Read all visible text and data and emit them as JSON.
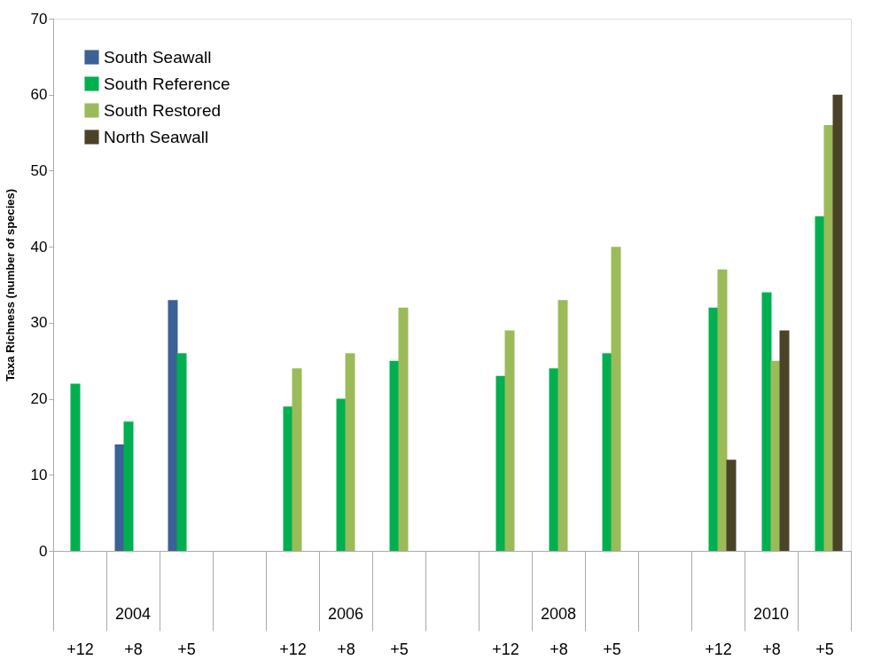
{
  "chart_data": {
    "type": "bar",
    "ylabel": "Taxa Richness (number of species)",
    "categories": [
      "+12",
      "+8",
      "+5",
      null,
      "+12",
      "+8",
      "+5",
      null,
      "+12",
      "+8",
      "+5",
      null,
      "+12",
      "+8",
      "+5"
    ],
    "series": [
      {
        "name": "South Seawall",
        "color": "#3b6196",
        "values": [
          null,
          14,
          33,
          null,
          null,
          null,
          null,
          null,
          null,
          null,
          null,
          null,
          null,
          null,
          null
        ]
      },
      {
        "name": "South Reference",
        "color": "#00b050",
        "values": [
          22,
          17,
          26,
          null,
          19,
          20,
          25,
          null,
          23,
          24,
          26,
          null,
          32,
          34,
          44
        ]
      },
      {
        "name": "South Restored",
        "color": "#9bbb59",
        "values": [
          null,
          null,
          null,
          null,
          24,
          26,
          32,
          null,
          29,
          33,
          40,
          null,
          37,
          25,
          56
        ]
      },
      {
        "name": "North Seawall",
        "color": "#4a4229",
        "values": [
          null,
          null,
          null,
          null,
          null,
          null,
          null,
          null,
          null,
          null,
          null,
          null,
          12,
          29,
          60
        ]
      }
    ],
    "annotations": [
      "2004",
      "2006",
      "2008",
      "2010"
    ],
    "ylim": [
      0,
      70
    ],
    "yticks": [
      0,
      10,
      20,
      30,
      40,
      50,
      60,
      70
    ],
    "grid": false,
    "legend": "top left"
  }
}
